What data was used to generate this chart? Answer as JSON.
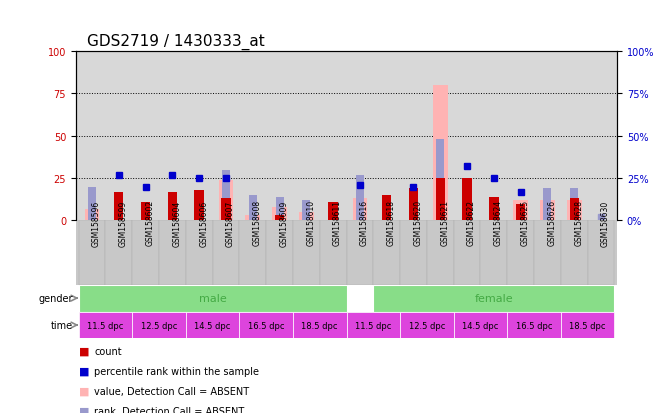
{
  "title": "GDS2719 / 1430333_at",
  "samples": [
    "GSM158596",
    "GSM158599",
    "GSM158602",
    "GSM158604",
    "GSM158606",
    "GSM158607",
    "GSM158608",
    "GSM158609",
    "GSM158610",
    "GSM158611",
    "GSM158616",
    "GSM158618",
    "GSM158620",
    "GSM158621",
    "GSM158622",
    "GSM158624",
    "GSM158625",
    "GSM158626",
    "GSM158628",
    "GSM158630"
  ],
  "count_values": [
    0,
    17,
    11,
    17,
    18,
    13,
    0,
    3,
    0,
    11,
    0,
    15,
    19,
    25,
    25,
    14,
    10,
    0,
    13,
    0
  ],
  "count_absent": [
    true,
    false,
    false,
    false,
    false,
    false,
    false,
    false,
    false,
    false,
    false,
    false,
    false,
    false,
    false,
    false,
    false,
    false,
    false,
    false
  ],
  "value_absent_bars": [
    7,
    0,
    0,
    0,
    0,
    24,
    3,
    8,
    5,
    0,
    13,
    0,
    0,
    80,
    0,
    0,
    12,
    12,
    12,
    0
  ],
  "value_absent_flag": [
    true,
    false,
    false,
    false,
    false,
    true,
    true,
    true,
    true,
    false,
    true,
    false,
    false,
    true,
    false,
    false,
    true,
    true,
    true,
    false
  ],
  "rank_dark_values": [
    0,
    27,
    20,
    27,
    25,
    25,
    0,
    0,
    0,
    0,
    21,
    0,
    20,
    0,
    32,
    25,
    17,
    0,
    0,
    2
  ],
  "rank_dark_absent": [
    false,
    false,
    false,
    false,
    false,
    false,
    false,
    false,
    false,
    false,
    false,
    false,
    false,
    false,
    false,
    false,
    false,
    false,
    false,
    true
  ],
  "rank_absent_bars": [
    20,
    0,
    0,
    0,
    0,
    30,
    15,
    14,
    12,
    0,
    27,
    0,
    0,
    48,
    0,
    0,
    0,
    19,
    19,
    0
  ],
  "rank_absent_flag": [
    true,
    false,
    false,
    false,
    false,
    true,
    true,
    true,
    true,
    false,
    true,
    false,
    false,
    true,
    false,
    false,
    false,
    true,
    true,
    false
  ],
  "ylim": [
    0,
    100
  ],
  "yticks": [
    0,
    25,
    50,
    75,
    100
  ],
  "count_color": "#cc0000",
  "count_absent_color": "#ffb3b3",
  "rank_color": "#0000cc",
  "rank_absent_color": "#9999cc",
  "male_color": "#88dd88",
  "female_color": "#dd44dd",
  "gender_text_color": "#44aa44",
  "background_color": "#ffffff",
  "plot_bg_color": "#d8d8d8",
  "label_bg_color": "#c8c8c8",
  "left_axis_color": "#cc0000",
  "right_axis_color": "#0000cc",
  "title_fontsize": 11,
  "tick_fontsize": 7,
  "label_fontsize": 8,
  "time_labels": [
    "11.5 dpc",
    "12.5 dpc",
    "14.5 dpc",
    "16.5 dpc",
    "18.5 dpc"
  ],
  "time_color": "#dd44dd"
}
